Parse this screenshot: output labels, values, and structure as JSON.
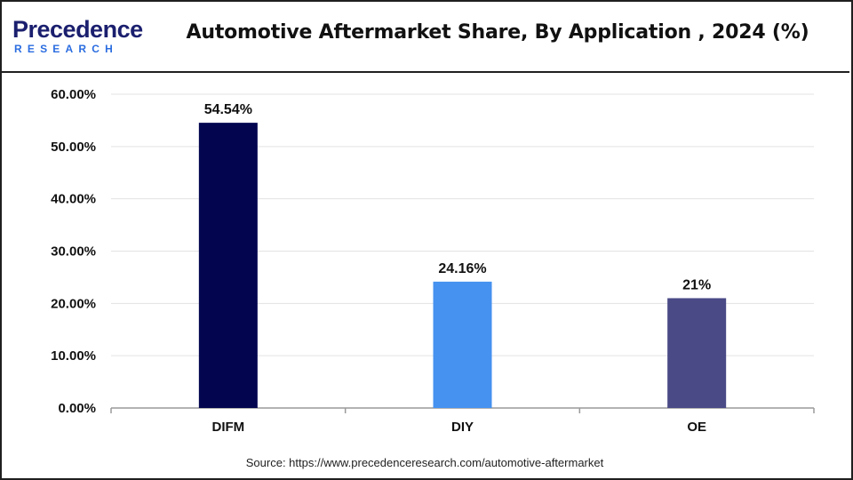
{
  "brand": {
    "logo_main": "Precedence",
    "logo_sub": "RESEARCH"
  },
  "chart_data": {
    "type": "bar",
    "title": "Automotive Aftermarket Share, By Application , 2024 (%)",
    "categories": [
      "DIFM",
      "DIY",
      "OE"
    ],
    "values": [
      54.54,
      24.16,
      21
    ],
    "data_labels": [
      "54.54%",
      "24.16%",
      "21%"
    ],
    "bar_colors": [
      "#03064f",
      "#4592f0",
      "#4a4a87"
    ],
    "ylim": [
      0,
      60
    ],
    "yticks": [
      0,
      10,
      20,
      30,
      40,
      50,
      60
    ],
    "ytick_labels": [
      "0.00%",
      "10.00%",
      "20.00%",
      "30.00%",
      "40.00%",
      "50.00%",
      "60.00%"
    ],
    "xlabel": "",
    "ylabel": "",
    "grid": true,
    "legend": "none"
  },
  "source": "Source: https://www.precedenceresearch.com/automotive-aftermarket"
}
